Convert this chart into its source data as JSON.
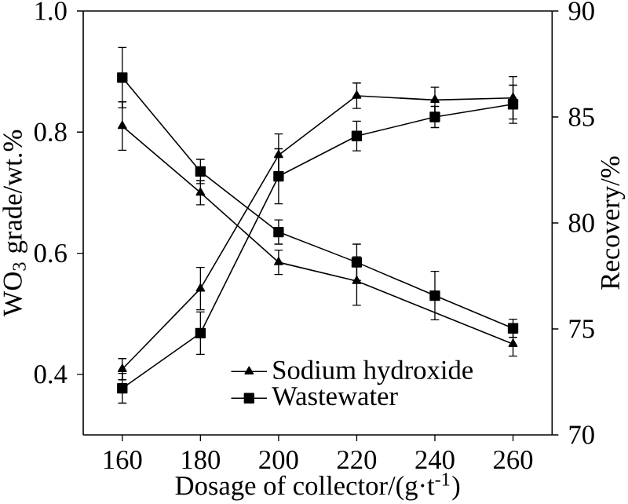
{
  "chart_data": {
    "type": "line",
    "xlabel": "Dosage of collector/(g·t$^{-1}$)",
    "ylabel": "WO$_{3}$ grade/wt.%",
    "y2label": "Recovery/%",
    "x": [
      160,
      180,
      200,
      220,
      240,
      260
    ],
    "xlim": [
      150,
      270
    ],
    "xticks": [
      160,
      180,
      200,
      220,
      240,
      260
    ],
    "ylim": [
      0.3,
      1.0
    ],
    "yticks": [
      0.4,
      0.6,
      0.8,
      {
        "value": 1.0,
        "label": "1.0"
      }
    ],
    "y2lim": [
      70,
      90
    ],
    "y2ticks": [
      70,
      75,
      80,
      85,
      90
    ],
    "legend": "bottom",
    "line_style": "solid",
    "series": [
      {
        "name": "Sodium hydroxide",
        "color": "#000000",
        "marker": "triangle",
        "values": [
          0.81,
          0.7,
          0.585,
          0.554,
          null,
          0.45
        ],
        "errors": [
          0.04,
          0.02,
          0.02,
          0.04,
          null,
          0.02
        ]
      },
      {
        "name": "Wastewater",
        "color": "#000000",
        "marker": "square",
        "values": [
          0.89,
          0.735,
          0.635,
          0.585,
          0.53,
          0.476
        ],
        "errors": [
          0.05,
          0.02,
          0.02,
          0.03,
          0.04,
          0.015
        ]
      },
      {
        "color": "#000000",
        "marker": "triangle",
        "axis": "y2",
        "values": [
          73.1,
          76.9,
          83.2,
          86.0,
          85.8,
          85.9
        ],
        "errors": [
          0.5,
          1.0,
          1.0,
          0.6,
          0.6,
          1.0
        ]
      },
      {
        "color": "#000000",
        "marker": "square",
        "axis": "y2",
        "values": [
          72.2,
          74.8,
          82.2,
          84.1,
          85.0,
          85.6
        ],
        "errors": [
          0.7,
          1.0,
          1.3,
          0.7,
          0.5,
          0.9
        ]
      }
    ]
  }
}
